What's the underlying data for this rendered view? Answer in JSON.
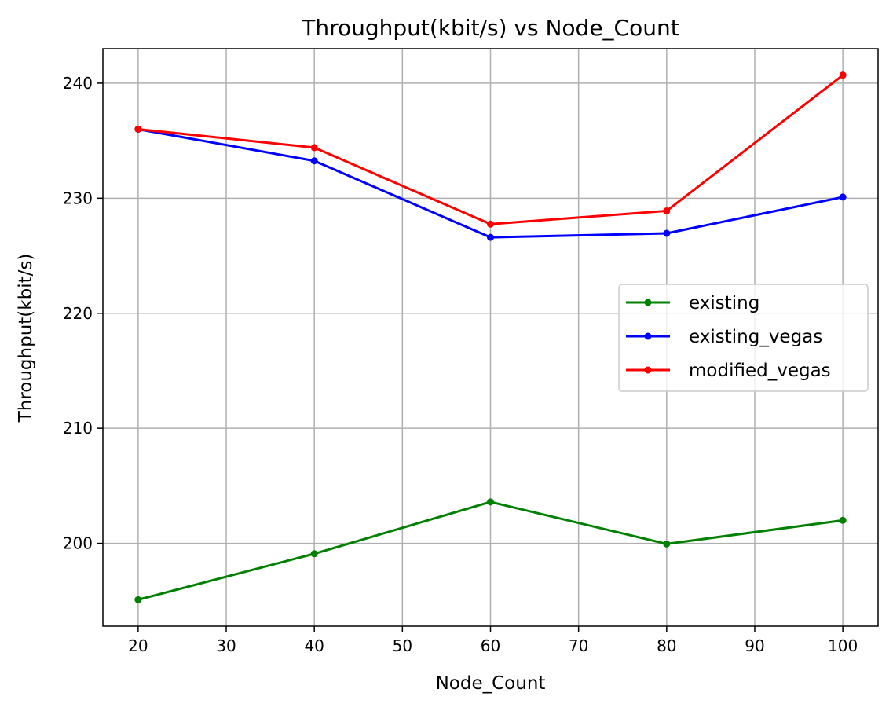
{
  "chart_data": {
    "type": "line",
    "title": "Throughput(kbit/s) vs Node_Count",
    "xlabel": "Node_Count",
    "ylabel": "Throughput(kbit/s)",
    "x": [
      20,
      40,
      60,
      80,
      100
    ],
    "xlim": [
      16,
      104
    ],
    "ylim": [
      192.8,
      243.0
    ],
    "xticks": [
      20,
      30,
      40,
      50,
      60,
      70,
      80,
      90,
      100
    ],
    "yticks": [
      200,
      210,
      220,
      230,
      240
    ],
    "grid": true,
    "legend_position": "center-right",
    "series": [
      {
        "name": "existing",
        "color": "#008000",
        "values": [
          195.1,
          199.1,
          203.6,
          199.95,
          202.0
        ]
      },
      {
        "name": "existing_vegas",
        "color": "#0000ff",
        "values": [
          236.0,
          233.25,
          226.6,
          226.95,
          230.1
        ]
      },
      {
        "name": "modified_vegas",
        "color": "#ff0000",
        "values": [
          236.0,
          234.4,
          227.75,
          228.9,
          240.7
        ]
      }
    ]
  }
}
